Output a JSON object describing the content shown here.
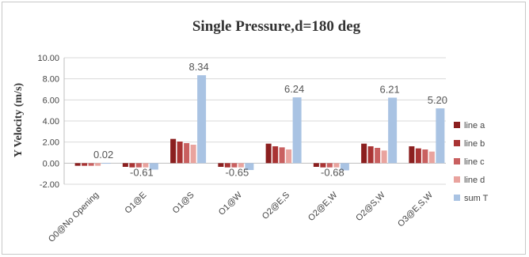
{
  "chart_data": {
    "type": "bar",
    "title": "Single Pressure,d=180 deg",
    "ylabel": "Y Velocity (m/s)",
    "xlabel": "",
    "ylim": [
      -2.0,
      10.0
    ],
    "yticks": [
      "10.00",
      "8.00",
      "6.00",
      "4.00",
      "2.00",
      "0.00",
      "-2.00"
    ],
    "ytick_values": [
      10,
      8,
      6,
      4,
      2,
      0,
      -2
    ],
    "grid": true,
    "legend_position": "right",
    "categories": [
      "O0@No Opening",
      "O1@E",
      "O1@S",
      "O1@W",
      "O2@E,S",
      "O2@E,W",
      "O2@S,W",
      "O3@E,S,W"
    ],
    "series": [
      {
        "name": "line a",
        "color": "#8b1f1f",
        "values": [
          -0.25,
          -0.35,
          2.3,
          -0.35,
          1.85,
          -0.35,
          1.85,
          1.6
        ]
      },
      {
        "name": "line b",
        "color": "#a93434",
        "values": [
          -0.25,
          -0.4,
          2.05,
          -0.4,
          1.6,
          -0.4,
          1.6,
          1.4
        ]
      },
      {
        "name": "line c",
        "color": "#c96060",
        "values": [
          -0.25,
          -0.4,
          1.9,
          -0.4,
          1.5,
          -0.4,
          1.45,
          1.3
        ]
      },
      {
        "name": "line d",
        "color": "#e9a39e",
        "values": [
          -0.25,
          -0.4,
          1.75,
          -0.4,
          1.3,
          -0.4,
          1.2,
          1.1
        ]
      },
      {
        "name": "sum T",
        "color": "#a9c3e3",
        "values": [
          0.02,
          -0.61,
          8.34,
          -0.65,
          6.24,
          -0.68,
          6.21,
          5.2
        ]
      }
    ],
    "data_labels": [
      "0.02",
      "-0.61",
      "8.34",
      "-0.65",
      "6.24",
      "-0.68",
      "6.21",
      "5.20"
    ]
  }
}
